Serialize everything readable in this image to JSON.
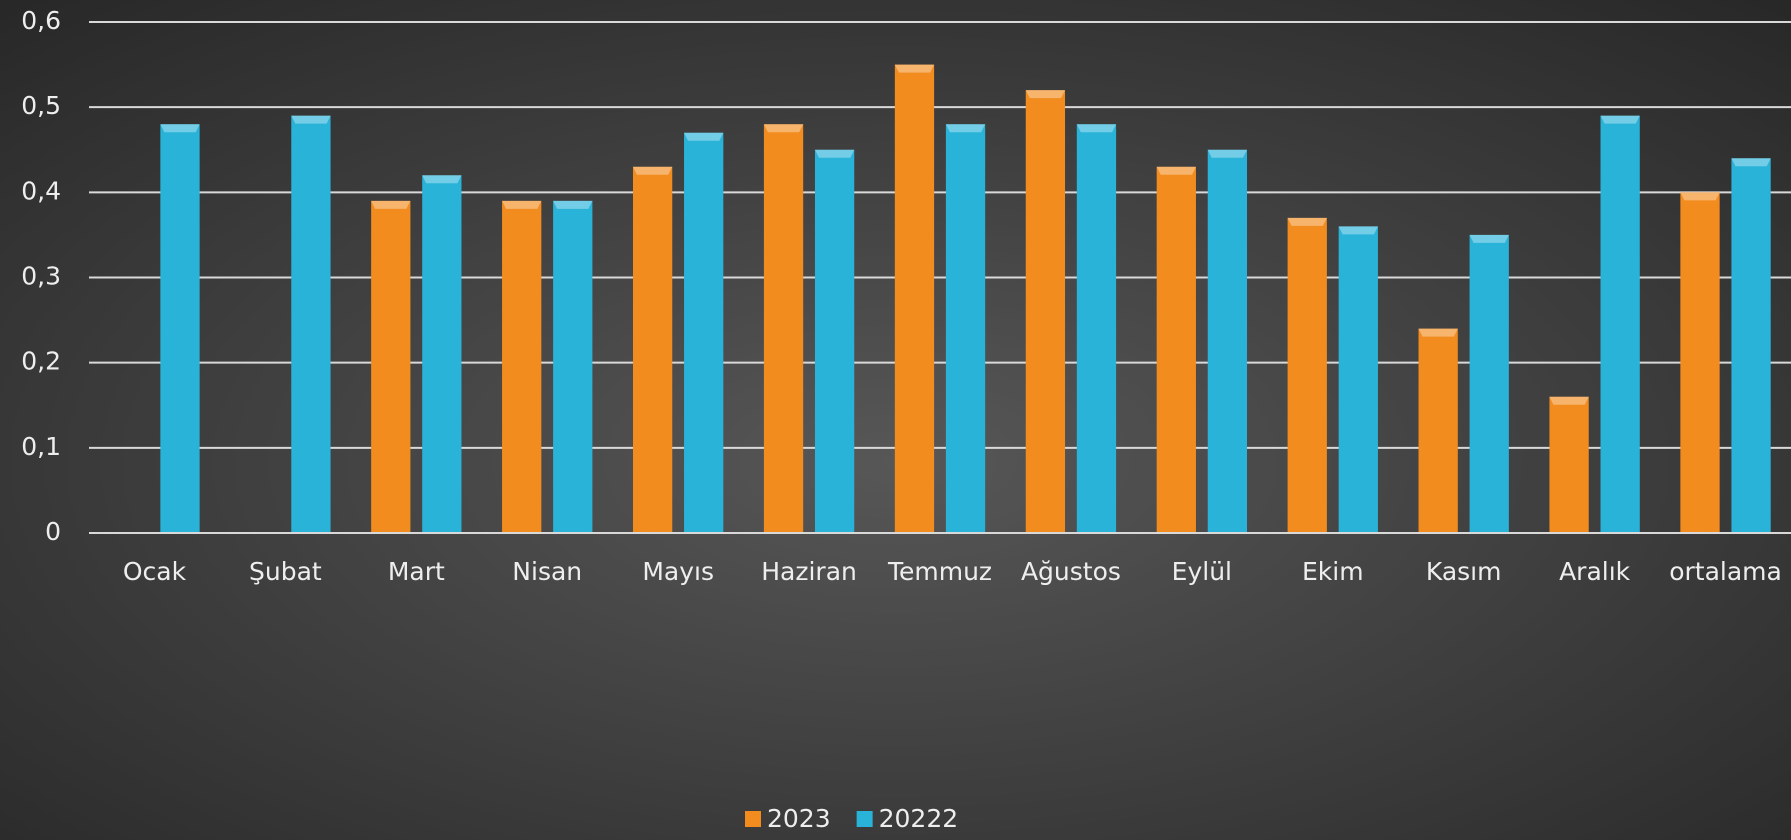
{
  "chart_data": {
    "type": "bar",
    "categories": [
      "Ocak",
      "Şubat",
      "Mart",
      "Nisan",
      "Mayıs",
      "Haziran",
      "Temmuz",
      "Ağustos",
      "Eylül",
      "Ekim",
      "Kasım",
      "Aralık",
      "ortalama"
    ],
    "series": [
      {
        "name": "2023",
        "color": "#f28c1e",
        "values": [
          null,
          null,
          0.39,
          0.39,
          0.43,
          0.48,
          0.55,
          0.52,
          0.43,
          0.37,
          0.24,
          0.16,
          0.4
        ]
      },
      {
        "name": "20222",
        "color": "#29b3d9",
        "values": [
          0.48,
          0.49,
          0.42,
          0.39,
          0.47,
          0.45,
          0.48,
          0.48,
          0.45,
          0.36,
          0.35,
          0.49,
          0.44
        ]
      }
    ],
    "ylim": [
      0,
      0.6
    ],
    "yticks": [
      0,
      {
        "value": 0.1,
        "label": "0,1"
      },
      {
        "value": 0.2,
        "label": "0,2"
      },
      {
        "value": 0.3,
        "label": "0,3"
      },
      {
        "value": 0.4,
        "label": "0,4"
      },
      {
        "value": 0.5,
        "label": "0,5"
      },
      {
        "value": 0.6,
        "label": "0,6"
      }
    ],
    "grid": true,
    "legend": "bottom"
  }
}
